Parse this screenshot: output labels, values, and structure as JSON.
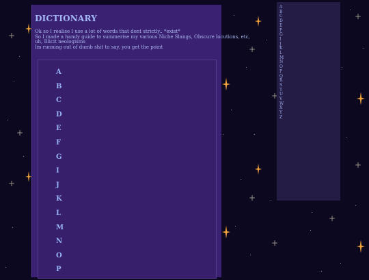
{
  "page": {
    "title": "DICTIONARY",
    "intro_lines": [
      "Ok so I realise I use a lot of words that dont strictly.. *exist*",
      "So I made a handy guide to summerise my various Niche Slangs, Obscure locutions, etc,",
      "uh, Illicit neologisms",
      "Im running out of dumb shit to say, you get the point"
    ]
  },
  "main_index": [
    "A",
    "B",
    "C",
    "D",
    "E",
    "F",
    "G",
    "I",
    "J",
    "K",
    "L",
    "M",
    "N",
    "O",
    "P"
  ],
  "side_index": [
    "A",
    "B",
    "C",
    "D",
    "E",
    "F",
    "G",
    "I",
    "J",
    "K",
    "L",
    "M",
    "N",
    "O",
    "P",
    "Q",
    "R",
    "S",
    "T",
    "U",
    "V",
    "W",
    "X",
    "Y",
    "Z"
  ],
  "colors": {
    "background": "#0c0820",
    "panel": "#3b2171",
    "sidebar": "#241c45",
    "link": "#97b2f4",
    "sparkle": "#f1a23a"
  },
  "icons": {
    "sparkle": "sparkle-star-icon",
    "cross": "cross-star-icon"
  }
}
